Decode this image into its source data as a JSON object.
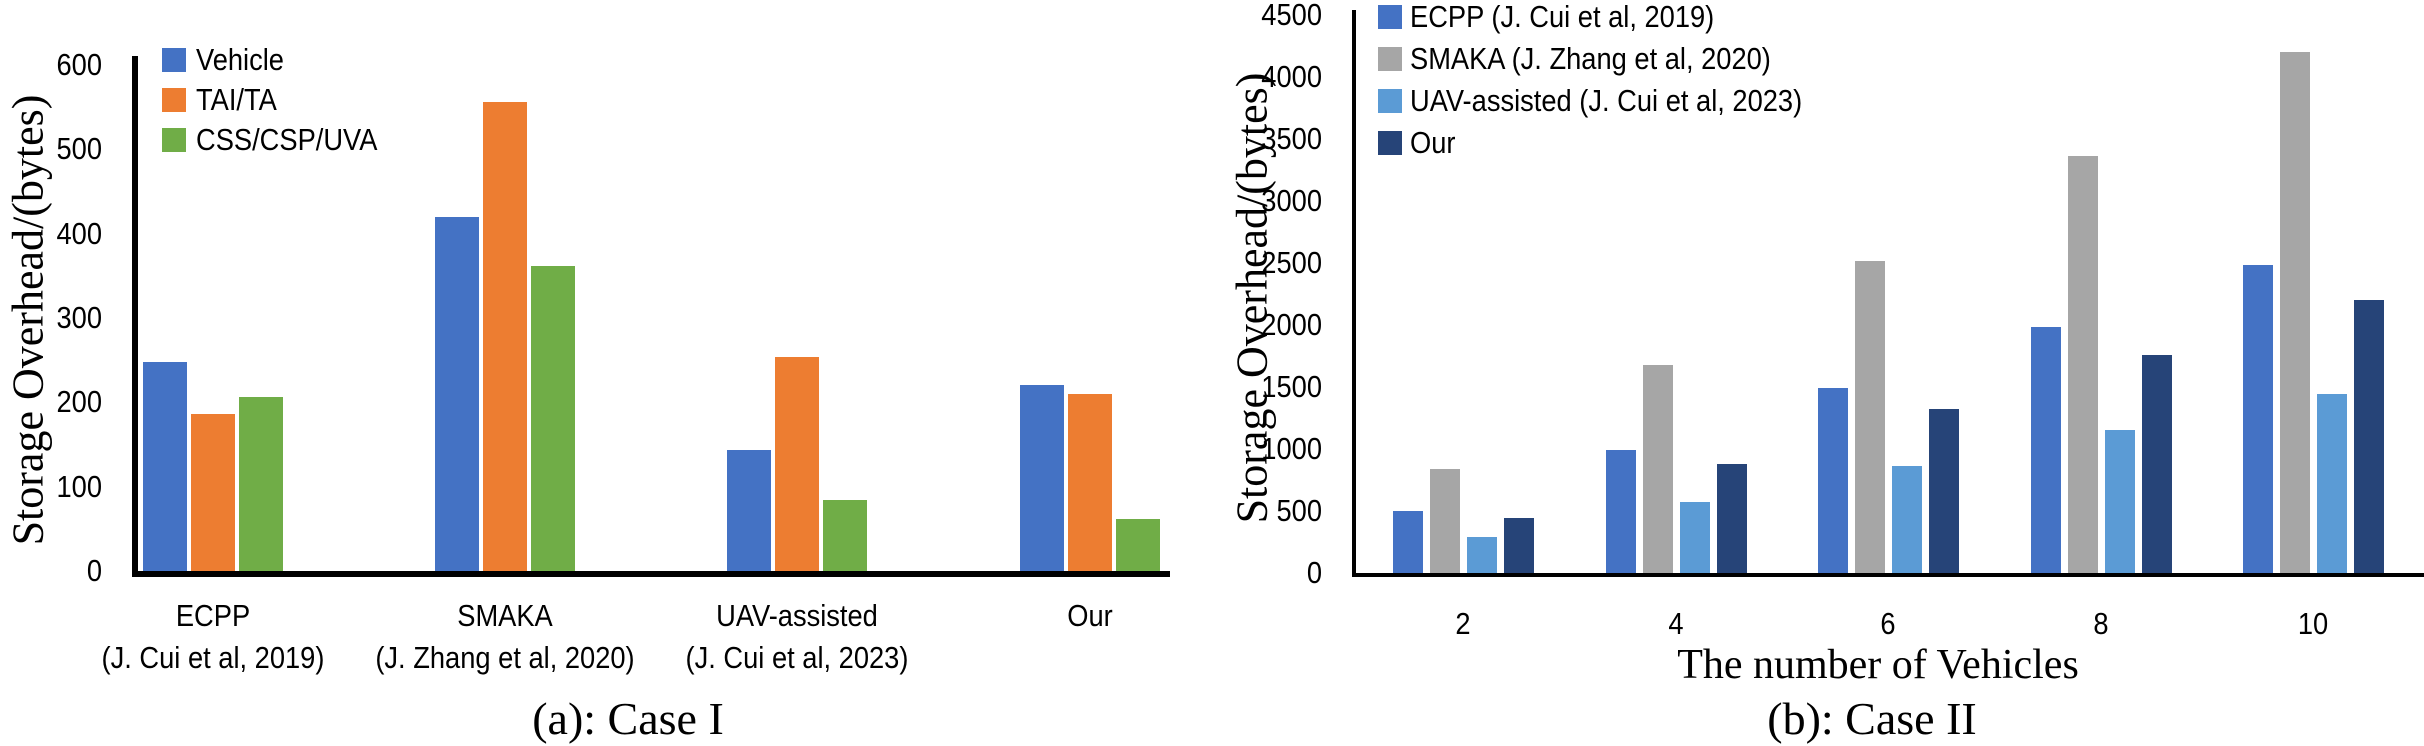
{
  "page": {
    "background": "#FFFFFF",
    "axis_color": "#000000"
  },
  "chart_data": [
    {
      "type": "bar",
      "panel": "a",
      "caption": "(a): Case I",
      "title": "",
      "ylabel": "Storage Overhead/(bytes)",
      "xlabel": "",
      "ylim": [
        0,
        600
      ],
      "yticks": [
        0,
        100,
        200,
        300,
        400,
        500,
        600
      ],
      "grid": false,
      "legend_position": "top-left-inside",
      "categories": [
        {
          "line1": "ECPP",
          "line2": "(J. Cui et al, 2019)"
        },
        {
          "line1": "SMAKA",
          "line2": "(J. Zhang et al, 2020)"
        },
        {
          "line1": "UAV-assisted",
          "line2": "(J. Cui et al, 2023)"
        },
        {
          "line1": "Our",
          "line2": ""
        }
      ],
      "series": [
        {
          "name": "Vehicle",
          "color": "#4472C4",
          "values": [
            248,
            420,
            144,
            220
          ]
        },
        {
          "name": "TAI/TA",
          "color": "#ED7D31",
          "values": [
            186,
            556,
            254,
            210
          ]
        },
        {
          "name": "CSS/CSP/UVA",
          "color": "#70AD47",
          "values": [
            206,
            362,
            84,
            62
          ]
        }
      ]
    },
    {
      "type": "bar",
      "panel": "b",
      "caption": "(b): Case II",
      "title": "",
      "ylabel": "Storage Overhead/(bytes)",
      "xlabel": "The number of Vehicles",
      "ylim": [
        0,
        4500
      ],
      "yticks": [
        0,
        500,
        1000,
        1500,
        2000,
        2500,
        3000,
        3500,
        4000,
        4500
      ],
      "grid": false,
      "legend_position": "top-left-inside",
      "categories": [
        {
          "line1": "2",
          "line2": ""
        },
        {
          "line1": "4",
          "line2": ""
        },
        {
          "line1": "6",
          "line2": ""
        },
        {
          "line1": "8",
          "line2": ""
        },
        {
          "line1": "10",
          "line2": ""
        }
      ],
      "series": [
        {
          "name": "ECPP (J. Cui et al, 2019)",
          "color": "#4472C4",
          "values": [
            496,
            992,
            1488,
            1984,
            2480
          ]
        },
        {
          "name": "SMAKA (J. Zhang et al, 2020)",
          "color": "#A6A6A6",
          "values": [
            840,
            1680,
            2520,
            3360,
            4200
          ]
        },
        {
          "name": "UAV-assisted (J. Cui et al, 2023)",
          "color": "#5B9BD5",
          "values": [
            288,
            576,
            864,
            1152,
            1440
          ]
        },
        {
          "name": "Our",
          "color": "#264478",
          "values": [
            440,
            880,
            1320,
            1760,
            2200
          ]
        }
      ]
    }
  ]
}
